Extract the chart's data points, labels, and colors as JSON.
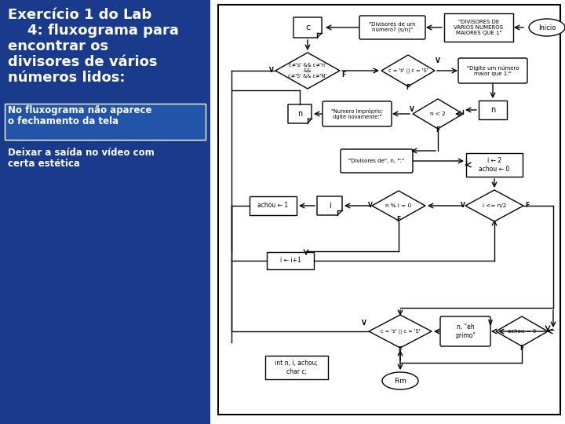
{
  "bg_color": "#1a3a8c",
  "title": "Exercício 1 do Lab\n    4: fluxograma para\nencontrar os\ndivisores de vários\nnúmeros lidos:",
  "note1": "No fluxograma não aparece\no fechamento da tela",
  "note2": "Deixar a saída no vídeo com\ncerta estética"
}
